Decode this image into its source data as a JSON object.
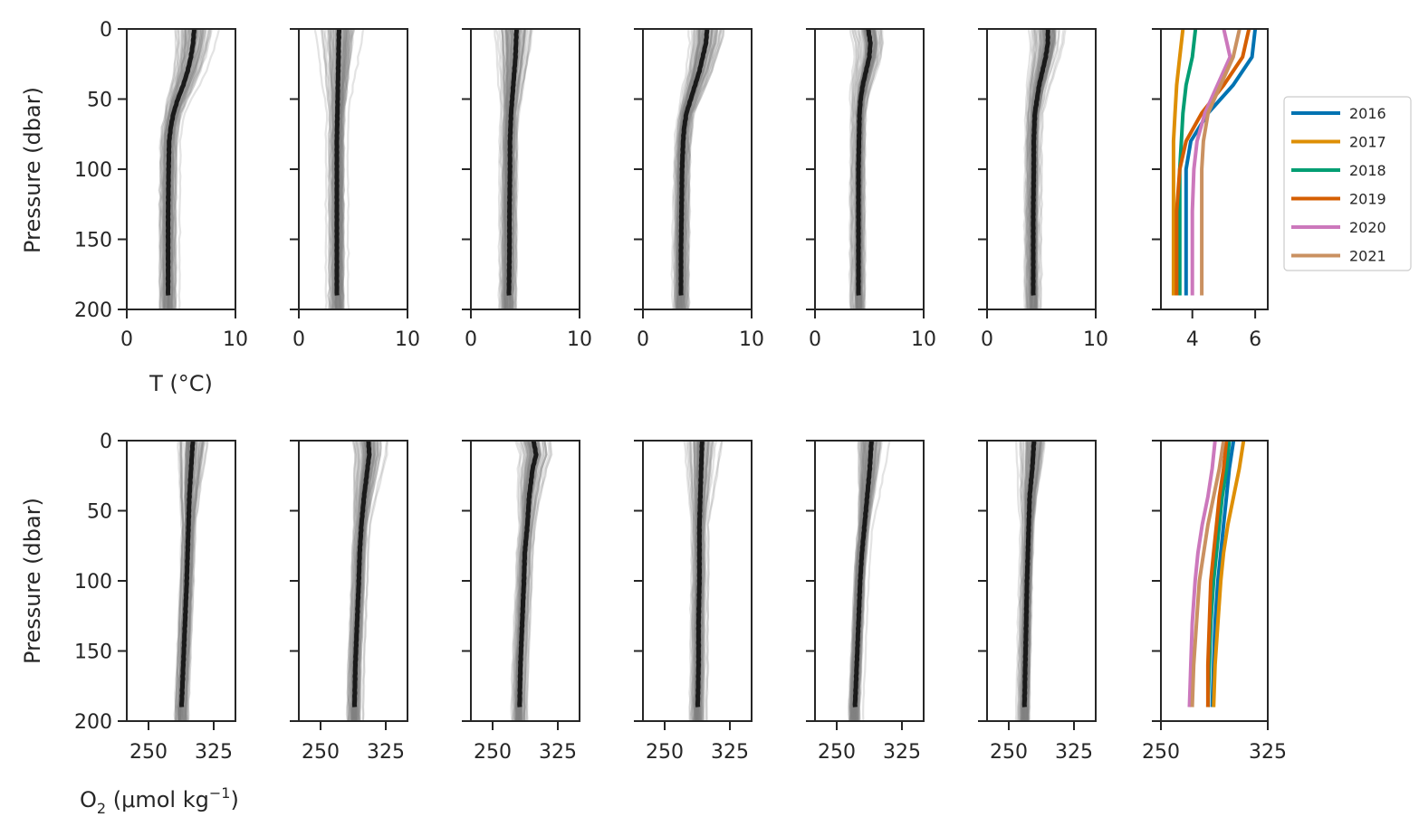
{
  "figure": {
    "row1_ylabel": "Pressure (dbar)",
    "row2_ylabel": "Pressure (dbar)",
    "row1_xlabel": "T (°C)",
    "row2_xlabel_main": "O",
    "row2_xlabel_sub": "2",
    "row2_xlabel_mid": " (μmol kg",
    "row2_xlabel_sup": "−1",
    "row2_xlabel_end": ")"
  },
  "colors": {
    "profile_gray": "#808080",
    "mean_black": "#1a1a1a",
    "axis": "#262626",
    "2016": "#0173b2",
    "2017": "#de8f05",
    "2018": "#029e73",
    "2019": "#d55e00",
    "2020": "#cc78bc",
    "2021": "#ca9161"
  },
  "legend": {
    "entries": [
      "2016",
      "2017",
      "2018",
      "2019",
      "2020",
      "2021"
    ]
  },
  "chart_data": [
    {
      "type": "line",
      "panel": "temperature-profiles",
      "description_axis": "pressure on y (inverted)",
      "xlabel": "T (°C)",
      "ylabel": "Pressure (dbar)",
      "xlim": [
        0,
        10
      ],
      "ylim": [
        200,
        0
      ],
      "xticks": [
        0,
        10
      ],
      "yticks": [
        0,
        50,
        100,
        150,
        200
      ],
      "series": [
        {
          "name": "2016",
          "x": [
            6.0,
            5.9,
            5.3,
            4.5,
            3.95,
            3.8,
            3.8,
            3.8,
            3.8
          ],
          "y": [
            0,
            20,
            40,
            60,
            80,
            100,
            130,
            160,
            190
          ]
        },
        {
          "name": "2017",
          "x": [
            3.7,
            3.6,
            3.5,
            3.45,
            3.4,
            3.4,
            3.4,
            3.4,
            3.4
          ],
          "y": [
            0,
            20,
            40,
            60,
            80,
            100,
            130,
            160,
            190
          ]
        },
        {
          "name": "2018",
          "x": [
            4.1,
            4.0,
            3.8,
            3.7,
            3.65,
            3.6,
            3.6,
            3.6,
            3.6
          ],
          "y": [
            0,
            20,
            40,
            60,
            80,
            100,
            130,
            160,
            190
          ]
        },
        {
          "name": "2019",
          "x": [
            5.8,
            5.6,
            5.0,
            4.3,
            3.8,
            3.6,
            3.5,
            3.5,
            3.5
          ],
          "y": [
            0,
            20,
            40,
            60,
            80,
            100,
            130,
            160,
            190
          ]
        },
        {
          "name": "2020",
          "x": [
            5.0,
            5.2,
            4.8,
            4.4,
            4.15,
            4.05,
            4.0,
            4.0,
            4.0
          ],
          "y": [
            0,
            20,
            40,
            60,
            80,
            100,
            130,
            160,
            190
          ]
        },
        {
          "name": "2021",
          "x": [
            5.5,
            5.3,
            4.9,
            4.5,
            4.35,
            4.3,
            4.3,
            4.3,
            4.3
          ],
          "y": [
            0,
            20,
            40,
            60,
            80,
            100,
            130,
            160,
            190
          ]
        }
      ]
    },
    {
      "type": "line",
      "panel": "oxygen-profiles",
      "description_axis": "pressure on y (inverted)",
      "xlabel": "O2 (μmol kg−1)",
      "ylabel": "Pressure (dbar)",
      "xlim": [
        225,
        350
      ],
      "ylim": [
        200,
        0
      ],
      "xticks": [
        250,
        325
      ],
      "yticks": [
        0,
        50,
        100,
        150,
        200
      ],
      "series": [
        {
          "name": "2016",
          "x": [
            301,
            298,
            296,
            294,
            292,
            290,
            288,
            287,
            286
          ],
          "y": [
            0,
            20,
            40,
            60,
            80,
            100,
            130,
            160,
            190
          ]
        },
        {
          "name": "2017",
          "x": [
            308,
            305,
            301,
            297,
            294,
            292,
            290,
            288,
            287
          ],
          "y": [
            0,
            20,
            40,
            60,
            80,
            100,
            130,
            160,
            190
          ]
        },
        {
          "name": "2018",
          "x": [
            298,
            296,
            293,
            291,
            289,
            287,
            285,
            284,
            283
          ],
          "y": [
            0,
            20,
            40,
            60,
            80,
            100,
            130,
            160,
            190
          ]
        },
        {
          "name": "2019",
          "x": [
            296,
            294,
            291,
            289,
            287,
            285,
            284,
            283,
            283
          ],
          "y": [
            0,
            20,
            40,
            60,
            80,
            100,
            130,
            160,
            190
          ]
        },
        {
          "name": "2020",
          "x": [
            288,
            286,
            283,
            279,
            276,
            274,
            272,
            271,
            270
          ],
          "y": [
            0,
            20,
            40,
            60,
            80,
            100,
            130,
            160,
            190
          ]
        },
        {
          "name": "2021",
          "x": [
            294,
            291,
            287,
            283,
            280,
            277,
            275,
            273,
            272
          ],
          "y": [
            0,
            20,
            40,
            60,
            80,
            100,
            130,
            160,
            190
          ]
        }
      ]
    }
  ]
}
